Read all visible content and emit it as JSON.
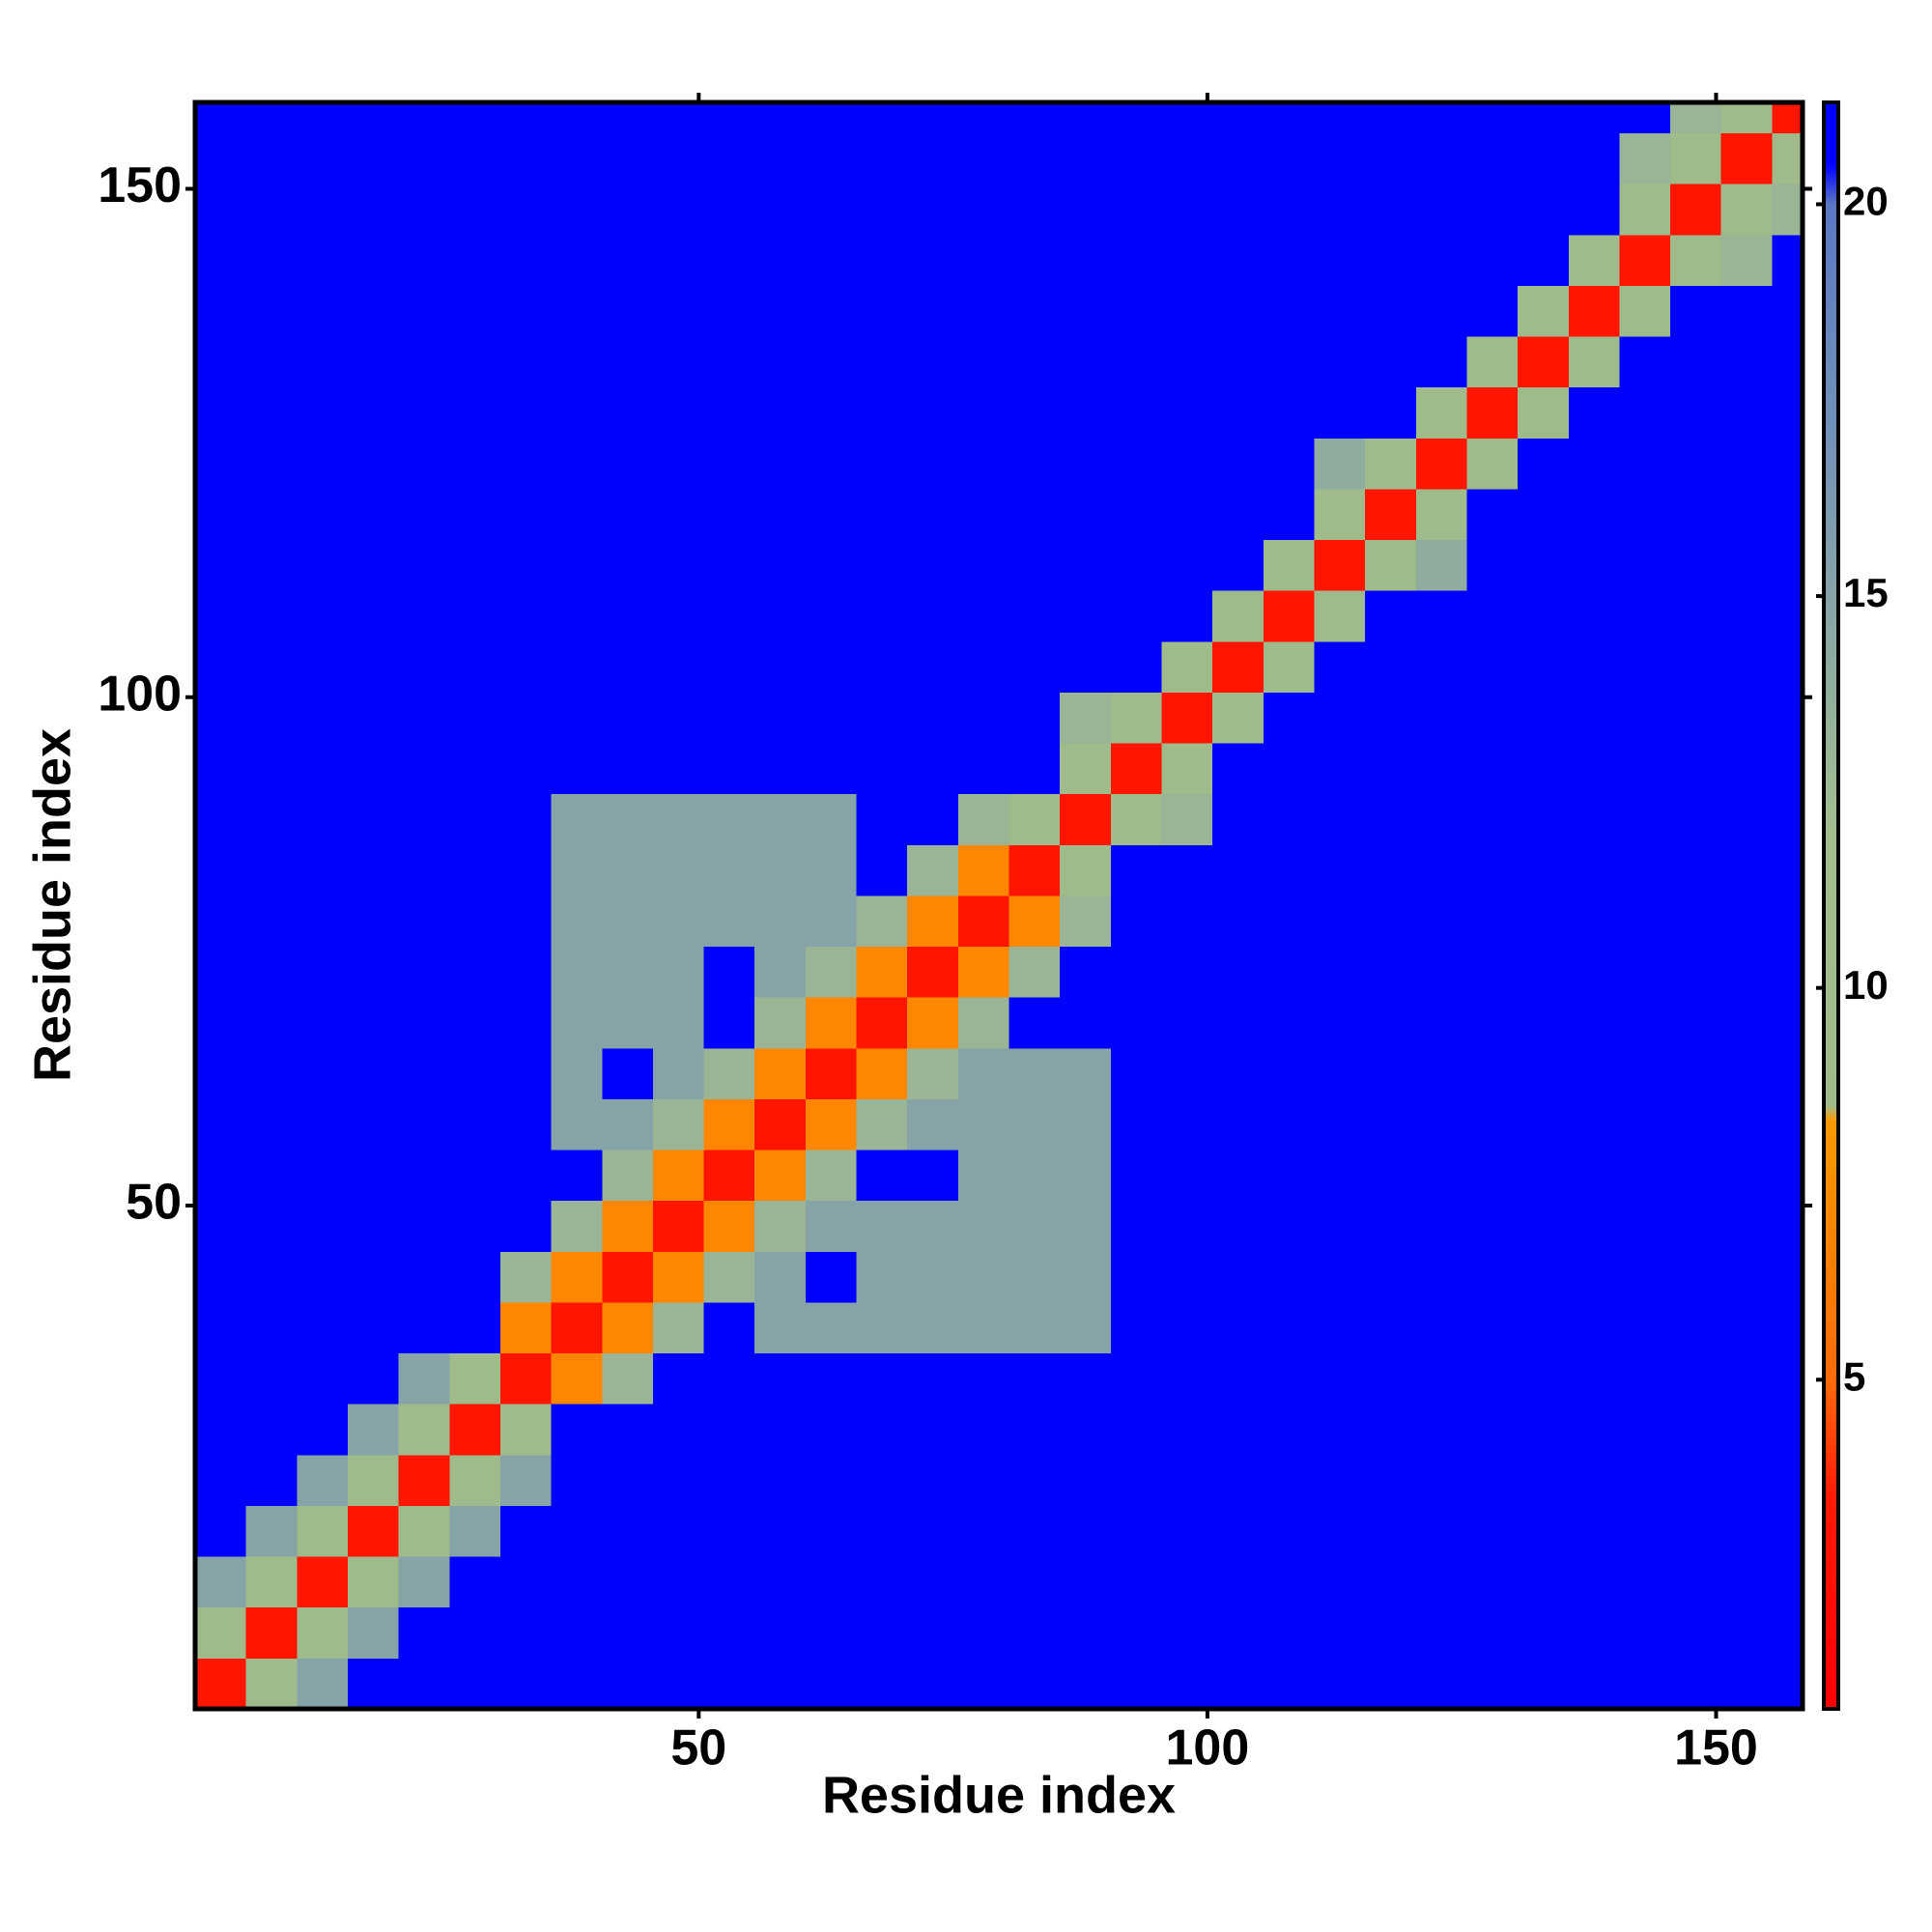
{
  "chart_data": {
    "type": "heatmap",
    "xlabel": "Residue index",
    "ylabel": "Residue index",
    "xlim": [
      0.5,
      158.5
    ],
    "ylim": [
      0.5,
      158.5
    ],
    "xticks": [
      50,
      100,
      150
    ],
    "yticks": [
      50,
      100,
      150
    ],
    "xbins": [
      0.5,
      5.5,
      10.5,
      15.5,
      20.5,
      25.5,
      30.5,
      35.5,
      40.5,
      45.5,
      50.5,
      55.5,
      60.5,
      65.5,
      70.5,
      75.5,
      80.5,
      85.5,
      90.5,
      95.5,
      100.5,
      105.5,
      110.5,
      115.5,
      120.5,
      125.5,
      130.5,
      135.5,
      140.5,
      145.5,
      150.5,
      155.5,
      158.5
    ],
    "ybins": [
      0.5,
      5.5,
      10.5,
      15.5,
      20.5,
      25.5,
      30.5,
      35.5,
      40.5,
      45.5,
      50.5,
      55.5,
      60.5,
      65.5,
      70.5,
      75.5,
      80.5,
      85.5,
      90.5,
      95.5,
      100.5,
      105.5,
      110.5,
      115.5,
      120.5,
      125.5,
      130.5,
      135.5,
      140.5,
      145.5,
      150.5,
      155.5,
      158.5
    ],
    "zlim": [
      0.8,
      21.3
    ],
    "zticks": [
      5,
      10,
      15,
      20
    ],
    "colorscale": [
      [
        0.8,
        "#ff0000"
      ],
      [
        3.5,
        "#ff1a00"
      ],
      [
        5,
        "#ff6a00"
      ],
      [
        8.3,
        "#ff9900"
      ],
      [
        8.5,
        "#9fbb8a"
      ],
      [
        12,
        "#a2be8e"
      ],
      [
        17,
        "#7392b8"
      ],
      [
        20,
        "#5a78c4"
      ],
      [
        20.5,
        "#0000ff"
      ],
      [
        21.3,
        "#0000ff"
      ]
    ],
    "z": [
      [
        3,
        9,
        15,
        21,
        21,
        21,
        21,
        21,
        21,
        21,
        21,
        21,
        21,
        21,
        21,
        21,
        21,
        21,
        21,
        21,
        21,
        21,
        21,
        21,
        21,
        21,
        21,
        21,
        21,
        21,
        21,
        21
      ],
      [
        9,
        3,
        9,
        15,
        21,
        21,
        21,
        21,
        21,
        21,
        21,
        21,
        21,
        21,
        21,
        21,
        21,
        21,
        21,
        21,
        21,
        21,
        21,
        21,
        21,
        21,
        21,
        21,
        21,
        21,
        21,
        21
      ],
      [
        15,
        9,
        3,
        9,
        15,
        21,
        21,
        21,
        21,
        21,
        21,
        21,
        21,
        21,
        21,
        21,
        21,
        21,
        21,
        21,
        21,
        21,
        21,
        21,
        21,
        21,
        21,
        21,
        21,
        21,
        21,
        21
      ],
      [
        21,
        15,
        9,
        3,
        9,
        15,
        21,
        21,
        21,
        21,
        21,
        21,
        21,
        21,
        21,
        21,
        21,
        21,
        21,
        21,
        21,
        21,
        21,
        21,
        21,
        21,
        21,
        21,
        21,
        21,
        21,
        21
      ],
      [
        21,
        21,
        15,
        9,
        3,
        9,
        15,
        21,
        21,
        21,
        21,
        21,
        21,
        21,
        21,
        21,
        21,
        21,
        21,
        21,
        21,
        21,
        21,
        21,
        21,
        21,
        21,
        21,
        21,
        21,
        21,
        21
      ],
      [
        21,
        21,
        21,
        15,
        9,
        3,
        9,
        21,
        21,
        21,
        21,
        21,
        21,
        21,
        21,
        21,
        21,
        21,
        21,
        21,
        21,
        21,
        21,
        21,
        21,
        21,
        21,
        21,
        21,
        21,
        21,
        21
      ],
      [
        21,
        21,
        21,
        21,
        15,
        9,
        3,
        7,
        13,
        21,
        21,
        21,
        21,
        21,
        21,
        21,
        21,
        21,
        21,
        21,
        21,
        21,
        21,
        21,
        21,
        21,
        21,
        21,
        21,
        21,
        21,
        21
      ],
      [
        21,
        21,
        21,
        21,
        21,
        21,
        7,
        3,
        7,
        13,
        21,
        15,
        15,
        15,
        15,
        15,
        15,
        15,
        21,
        21,
        21,
        21,
        21,
        21,
        21,
        21,
        21,
        21,
        21,
        21,
        21,
        21
      ],
      [
        21,
        21,
        21,
        21,
        21,
        21,
        13,
        7,
        3,
        7,
        13,
        15,
        21,
        15,
        15,
        15,
        15,
        15,
        21,
        21,
        21,
        21,
        21,
        21,
        21,
        21,
        21,
        21,
        21,
        21,
        21,
        21
      ],
      [
        21,
        21,
        21,
        21,
        21,
        21,
        21,
        13,
        7,
        3,
        7,
        13,
        15,
        15,
        15,
        15,
        15,
        15,
        21,
        21,
        21,
        21,
        21,
        21,
        21,
        21,
        21,
        21,
        21,
        21,
        21,
        21
      ],
      [
        21,
        21,
        21,
        21,
        21,
        21,
        21,
        21,
        13,
        7,
        3,
        7,
        13,
        21,
        21,
        15,
        15,
        15,
        21,
        21,
        21,
        21,
        21,
        21,
        21,
        21,
        21,
        21,
        21,
        21,
        21,
        21
      ],
      [
        21,
        21,
        21,
        21,
        21,
        21,
        21,
        15,
        15,
        13,
        7,
        3,
        7,
        13,
        15,
        15,
        15,
        15,
        21,
        21,
        21,
        21,
        21,
        21,
        21,
        21,
        21,
        21,
        21,
        21,
        21,
        21
      ],
      [
        21,
        21,
        21,
        21,
        21,
        21,
        21,
        15,
        21,
        15,
        13,
        7,
        3,
        7,
        13,
        15,
        15,
        15,
        21,
        21,
        21,
        21,
        21,
        21,
        21,
        21,
        21,
        21,
        21,
        21,
        21,
        21
      ],
      [
        21,
        21,
        21,
        21,
        21,
        21,
        21,
        15,
        15,
        15,
        21,
        13,
        7,
        3,
        7,
        13,
        21,
        21,
        21,
        21,
        21,
        21,
        21,
        21,
        21,
        21,
        21,
        21,
        21,
        21,
        21,
        21
      ],
      [
        21,
        21,
        21,
        21,
        21,
        21,
        21,
        15,
        15,
        15,
        21,
        15,
        13,
        7,
        3,
        7,
        13,
        21,
        21,
        21,
        21,
        21,
        21,
        21,
        21,
        21,
        21,
        21,
        21,
        21,
        21,
        21
      ],
      [
        21,
        21,
        21,
        21,
        21,
        21,
        21,
        15,
        15,
        15,
        15,
        15,
        15,
        13,
        7,
        3,
        7,
        13,
        21,
        21,
        21,
        21,
        21,
        21,
        21,
        21,
        21,
        21,
        21,
        21,
        21,
        21
      ],
      [
        21,
        21,
        21,
        21,
        21,
        21,
        21,
        15,
        15,
        15,
        15,
        15,
        15,
        21,
        13,
        7,
        3,
        9,
        21,
        21,
        21,
        21,
        21,
        21,
        21,
        21,
        21,
        21,
        21,
        21,
        21,
        21
      ],
      [
        21,
        21,
        21,
        21,
        21,
        21,
        21,
        15,
        15,
        15,
        15,
        15,
        15,
        21,
        21,
        13,
        9,
        3,
        9,
        13,
        21,
        21,
        21,
        21,
        21,
        21,
        21,
        21,
        21,
        21,
        21,
        21
      ],
      [
        21,
        21,
        21,
        21,
        21,
        21,
        21,
        21,
        21,
        21,
        21,
        21,
        21,
        21,
        21,
        21,
        21,
        9,
        3,
        9,
        21,
        21,
        21,
        21,
        21,
        21,
        21,
        21,
        21,
        21,
        21,
        21
      ],
      [
        21,
        21,
        21,
        21,
        21,
        21,
        21,
        21,
        21,
        21,
        21,
        21,
        21,
        21,
        21,
        21,
        21,
        13,
        9,
        3,
        9,
        21,
        21,
        21,
        21,
        21,
        21,
        21,
        21,
        21,
        21,
        21
      ],
      [
        21,
        21,
        21,
        21,
        21,
        21,
        21,
        21,
        21,
        21,
        21,
        21,
        21,
        21,
        21,
        21,
        21,
        21,
        21,
        9,
        3,
        9,
        21,
        21,
        21,
        21,
        21,
        21,
        21,
        21,
        21,
        21
      ],
      [
        21,
        21,
        21,
        21,
        21,
        21,
        21,
        21,
        21,
        21,
        21,
        21,
        21,
        21,
        21,
        21,
        21,
        21,
        21,
        21,
        9,
        3,
        9,
        21,
        21,
        21,
        21,
        21,
        21,
        21,
        21,
        21
      ],
      [
        21,
        21,
        21,
        21,
        21,
        21,
        21,
        21,
        21,
        21,
        21,
        21,
        21,
        21,
        21,
        21,
        21,
        21,
        21,
        21,
        21,
        9,
        3,
        9,
        14,
        21,
        21,
        21,
        21,
        21,
        21,
        21
      ],
      [
        21,
        21,
        21,
        21,
        21,
        21,
        21,
        21,
        21,
        21,
        21,
        21,
        21,
        21,
        21,
        21,
        21,
        21,
        21,
        21,
        21,
        21,
        9,
        3,
        9,
        21,
        21,
        21,
        21,
        21,
        21,
        21
      ],
      [
        21,
        21,
        21,
        21,
        21,
        21,
        21,
        21,
        21,
        21,
        21,
        21,
        21,
        21,
        21,
        21,
        21,
        21,
        21,
        21,
        21,
        21,
        14,
        9,
        3,
        9,
        21,
        21,
        21,
        21,
        21,
        21
      ],
      [
        21,
        21,
        21,
        21,
        21,
        21,
        21,
        21,
        21,
        21,
        21,
        21,
        21,
        21,
        21,
        21,
        21,
        21,
        21,
        21,
        21,
        21,
        21,
        21,
        9,
        3,
        9,
        21,
        21,
        21,
        21,
        21
      ],
      [
        21,
        21,
        21,
        21,
        21,
        21,
        21,
        21,
        21,
        21,
        21,
        21,
        21,
        21,
        21,
        21,
        21,
        21,
        21,
        21,
        21,
        21,
        21,
        21,
        21,
        9,
        3,
        9,
        21,
        21,
        21,
        21
      ],
      [
        21,
        21,
        21,
        21,
        21,
        21,
        21,
        21,
        21,
        21,
        21,
        21,
        21,
        21,
        21,
        21,
        21,
        21,
        21,
        21,
        21,
        21,
        21,
        21,
        21,
        21,
        9,
        3,
        9,
        21,
        21,
        21
      ],
      [
        21,
        21,
        21,
        21,
        21,
        21,
        21,
        21,
        21,
        21,
        21,
        21,
        21,
        21,
        21,
        21,
        21,
        21,
        21,
        21,
        21,
        21,
        21,
        21,
        21,
        21,
        21,
        9,
        3,
        9,
        13,
        21
      ],
      [
        21,
        21,
        21,
        21,
        21,
        21,
        21,
        21,
        21,
        21,
        21,
        21,
        21,
        21,
        21,
        21,
        21,
        21,
        21,
        21,
        21,
        21,
        21,
        21,
        21,
        21,
        21,
        21,
        9,
        3,
        9,
        13
      ],
      [
        21,
        21,
        21,
        21,
        21,
        21,
        21,
        21,
        21,
        21,
        21,
        21,
        21,
        21,
        21,
        21,
        21,
        21,
        21,
        21,
        21,
        21,
        21,
        21,
        21,
        21,
        21,
        21,
        13,
        9,
        3,
        9
      ],
      [
        21,
        21,
        21,
        21,
        21,
        21,
        21,
        21,
        21,
        21,
        21,
        21,
        21,
        21,
        21,
        21,
        21,
        21,
        21,
        21,
        21,
        21,
        21,
        21,
        21,
        21,
        21,
        21,
        21,
        13,
        9,
        3
      ]
    ]
  }
}
